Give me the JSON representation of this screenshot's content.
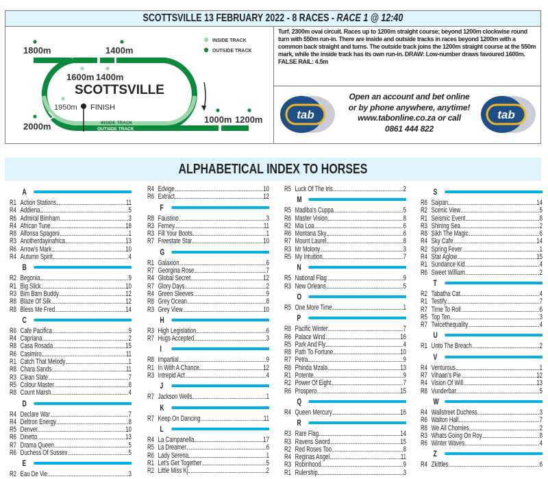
{
  "header": {
    "title_main": "SCOTTSVILLE 13 FEBRUARY 2022 - 8 RACES - ",
    "title_race": "RACE 1 @ 12:40"
  },
  "track_map": {
    "venue": "SCOTTSVILLE",
    "legend": {
      "inside": "INSIDE TRACK",
      "outside": "OUTSIDE TRACK"
    },
    "labels": {
      "m1800": "1800m",
      "m1400_outer": "1400m",
      "m1600_inner": "1600m",
      "m1400_inner": "1400m",
      "m1950": "1950m",
      "finish": "FINISH",
      "m2000": "2000m",
      "m1000": "1000m",
      "m1200": "1200m",
      "inside_track": "INSIDE TRACK",
      "outside_track": "OUTSIDE TRACK"
    },
    "colors": {
      "outside": "#0b8a3e",
      "inside": "#9bd8a9"
    }
  },
  "course_info": "Turf. 2300m oval circuit. Races up to 1200m straight course; beyond 1200m clockwise round turn with 550m run-in. There are inside and outside tracks in races beyond 1200m with a common back straight and turns. The outside track joins the 1200m straight course at the 550m mark, while the inside track has its own run-in. DRAW: Low-number draws favoured 1600m. FALSE RAIL: 4.5m",
  "promo": {
    "line1": "Open an account and bet online",
    "line2": "or by phone anywhere, anytime!",
    "line3": "www.tabonline.co.za or call",
    "line4": "0861 444 822",
    "logo_text": "tab"
  },
  "index_title": "ALPHABETICAL INDEX TO HORSES",
  "accent_color": "#00b0e6",
  "columns": [
    {
      "groups": [
        {
          "letter": "A",
          "entries": [
            {
              "r": "R1",
              "name": "Action Stations",
              "no": "11"
            },
            {
              "r": "R4",
              "name": "Addiena",
              "no": "5"
            },
            {
              "r": "R6",
              "name": "Admiral Bimham",
              "no": "3"
            },
            {
              "r": "R4",
              "name": "African Tune",
              "no": "18"
            },
            {
              "r": "R8",
              "name": "Alfonsa Spagoni",
              "no": "1"
            },
            {
              "r": "R3",
              "name": "Anotherdayinafrica",
              "no": "13"
            },
            {
              "r": "R6",
              "name": "Arrow's Mark",
              "no": "10"
            },
            {
              "r": "R4",
              "name": "Autumn Spirit",
              "no": "4"
            }
          ]
        },
        {
          "letter": "B",
          "entries": [
            {
              "r": "R2",
              "name": "Begonia",
              "no": "9"
            },
            {
              "r": "R1",
              "name": "Big Slick",
              "no": "10"
            },
            {
              "r": "R3",
              "name": "Bim Bam Buddy",
              "no": "12"
            },
            {
              "r": "R8",
              "name": "Blaze Of Silk",
              "no": "12"
            },
            {
              "r": "R8",
              "name": "Bless Me Fred",
              "no": "14"
            }
          ]
        },
        {
          "letter": "C",
          "entries": [
            {
              "r": "R6",
              "name": "Cafe Pacifica",
              "no": "9"
            },
            {
              "r": "R4",
              "name": "Capriana",
              "no": "2"
            },
            {
              "r": "R8",
              "name": "Casa Rosada",
              "no": "15"
            },
            {
              "r": "R6",
              "name": "Casimiro",
              "no": "11"
            },
            {
              "r": "R1",
              "name": "Catch That Melody",
              "no": "1"
            },
            {
              "r": "R8",
              "name": "Chara Sands",
              "no": "11"
            },
            {
              "r": "R3",
              "name": "Clean Slate",
              "no": "7"
            },
            {
              "r": "R5",
              "name": "Colour Master",
              "no": "8"
            },
            {
              "r": "R8",
              "name": "Count Marsh",
              "no": "4"
            }
          ]
        },
        {
          "letter": "D",
          "entries": [
            {
              "r": "R4",
              "name": "Declare War",
              "no": "7"
            },
            {
              "r": "R4",
              "name": "Deltron Energy",
              "no": "8"
            },
            {
              "r": "R5",
              "name": "Denver",
              "no": "10"
            },
            {
              "r": "R6",
              "name": "Dinetto",
              "no": "13"
            },
            {
              "r": "R7",
              "name": "Drama Queen",
              "no": "5"
            },
            {
              "r": "R6",
              "name": "Duchess Of Sussex",
              "no": "5"
            }
          ]
        },
        {
          "letter": "E",
          "entries": [
            {
              "r": "R2",
              "name": "Eau De Vie",
              "no": "3"
            }
          ]
        }
      ]
    },
    {
      "groups": [
        {
          "letter": null,
          "entries": [
            {
              "r": "R4",
              "name": "Edvige",
              "no": "10"
            },
            {
              "r": "R6",
              "name": "Extract",
              "no": "12"
            }
          ]
        },
        {
          "letter": "F",
          "entries": [
            {
              "r": "R8",
              "name": "Faustino",
              "no": "3"
            },
            {
              "r": "R3",
              "name": "Ferney",
              "no": "11"
            },
            {
              "r": "R3",
              "name": "Fill Your Boots",
              "no": "1"
            },
            {
              "r": "R7",
              "name": "Freestate Star",
              "no": "10"
            }
          ]
        },
        {
          "letter": "G",
          "entries": [
            {
              "r": "R1",
              "name": "Galaxion",
              "no": "6"
            },
            {
              "r": "R7",
              "name": "Georgina Rose",
              "no": "7"
            },
            {
              "r": "R4",
              "name": "Global Secret",
              "no": "12"
            },
            {
              "r": "R7",
              "name": "Glory Days",
              "no": "2"
            },
            {
              "r": "R4",
              "name": "Green Sleeves",
              "no": "9"
            },
            {
              "r": "R8",
              "name": "Grey Ocean",
              "no": "8"
            },
            {
              "r": "R3",
              "name": "Grey View",
              "no": "10"
            }
          ]
        },
        {
          "letter": "H",
          "entries": [
            {
              "r": "R3",
              "name": "High Legislation",
              "no": "6"
            },
            {
              "r": "R7",
              "name": "Hugs Accepted",
              "no": "3"
            }
          ]
        },
        {
          "letter": "I",
          "entries": [
            {
              "r": "R8",
              "name": "Impartial",
              "no": "9"
            },
            {
              "r": "R1",
              "name": "In With A Chance",
              "no": "12"
            },
            {
              "r": "R3",
              "name": "Intrepid Act",
              "no": "4"
            }
          ]
        },
        {
          "letter": "J",
          "entries": [
            {
              "r": "R7",
              "name": "Jackson Wells",
              "no": "1"
            }
          ]
        },
        {
          "letter": "K",
          "entries": [
            {
              "r": "R7",
              "name": "Keep On Dancing",
              "no": "11"
            }
          ]
        },
        {
          "letter": "L",
          "entries": [
            {
              "r": "R4",
              "name": "La Campanella",
              "no": "17"
            },
            {
              "r": "R5",
              "name": "La Dreamer",
              "no": "6"
            },
            {
              "r": "R6",
              "name": "Lady Serena",
              "no": "1"
            },
            {
              "r": "R1",
              "name": "Let's Get Together",
              "no": "5"
            },
            {
              "r": "R2",
              "name": "Little Miss Kj",
              "no": "2"
            }
          ]
        }
      ]
    },
    {
      "groups": [
        {
          "letter": null,
          "entries": [
            {
              "r": "R5",
              "name": "Luck Of The Iris",
              "no": "2"
            }
          ]
        },
        {
          "letter": "M",
          "entries": [
            {
              "r": "R5",
              "name": "Madiba's Cuppa",
              "no": "5"
            },
            {
              "r": "R6",
              "name": "Master Vision",
              "no": "8"
            },
            {
              "r": "R2",
              "name": "Mia Loa",
              "no": "6"
            },
            {
              "r": "R6",
              "name": "Montana Sky",
              "no": "6"
            },
            {
              "r": "R7",
              "name": "Mount Laurel",
              "no": "8"
            },
            {
              "r": "R3",
              "name": "Mr Molony",
              "no": "3"
            },
            {
              "r": "R5",
              "name": "My Intuition",
              "no": "7"
            }
          ]
        },
        {
          "letter": "N",
          "entries": [
            {
              "r": "R5",
              "name": "National Flag",
              "no": "9"
            },
            {
              "r": "R3",
              "name": "New Orleans",
              "no": "5"
            }
          ]
        },
        {
          "letter": "O",
          "entries": [
            {
              "r": "R5",
              "name": "One More Time",
              "no": "1"
            }
          ]
        },
        {
          "letter": "P",
          "entries": [
            {
              "r": "R8",
              "name": "Pacific Winter",
              "no": "7"
            },
            {
              "r": "R6",
              "name": "Palace Wind",
              "no": "16"
            },
            {
              "r": "R5",
              "name": "Park And Fly",
              "no": "4"
            },
            {
              "r": "R8",
              "name": "Path To Fortune",
              "no": "10"
            },
            {
              "r": "R7",
              "name": "Petra",
              "no": "9"
            },
            {
              "r": "R8",
              "name": "Phinda Mzala",
              "no": "13"
            },
            {
              "r": "R1",
              "name": "Potente",
              "no": "9"
            },
            {
              "r": "R2",
              "name": "Power Of Eight",
              "no": "7"
            },
            {
              "r": "R6",
              "name": "Prospero",
              "no": "15"
            }
          ]
        },
        {
          "letter": "Q",
          "entries": [
            {
              "r": "R4",
              "name": "Queen Mercury",
              "no": "16"
            }
          ]
        },
        {
          "letter": "R",
          "entries": [
            {
              "r": "R3",
              "name": "Rare Flag",
              "no": "14"
            },
            {
              "r": "R3",
              "name": "Ravens Sword",
              "no": "15"
            },
            {
              "r": "R2",
              "name": "Red Roses Too",
              "no": "8"
            },
            {
              "r": "R4",
              "name": "Reginas Angel",
              "no": "11"
            },
            {
              "r": "R3",
              "name": "Robinhood",
              "no": "9"
            },
            {
              "r": "R1",
              "name": "Rulership",
              "no": "3"
            }
          ]
        }
      ]
    },
    {
      "groups": [
        {
          "letter": "S",
          "entries": [
            {
              "r": "R6",
              "name": "Saipan",
              "no": "14"
            },
            {
              "r": "R2",
              "name": "Scenic View",
              "no": "5"
            },
            {
              "r": "R1",
              "name": "Seismic Event",
              "no": "8"
            },
            {
              "r": "R3",
              "name": "Shining Sea",
              "no": "2"
            },
            {
              "r": "R8",
              "name": "Sikh The Magic",
              "no": "6"
            },
            {
              "r": "R4",
              "name": "Sky Cafe",
              "no": "14"
            },
            {
              "r": "R2",
              "name": "Spring Fever",
              "no": "1"
            },
            {
              "r": "R4",
              "name": "Star Aglow",
              "no": "15"
            },
            {
              "r": "R1",
              "name": "Sundance Kid",
              "no": "4"
            },
            {
              "r": "R6",
              "name": "Sweet William",
              "no": "2"
            }
          ]
        },
        {
          "letter": "T",
          "entries": [
            {
              "r": "R2",
              "name": "Tabatha Cat",
              "no": "4"
            },
            {
              "r": "R1",
              "name": "Testify",
              "no": "7"
            },
            {
              "r": "R7",
              "name": "Time To Roll",
              "no": "6"
            },
            {
              "r": "R5",
              "name": "Top Ten",
              "no": "3"
            },
            {
              "r": "R7",
              "name": "Twicethequality",
              "no": "4"
            }
          ]
        },
        {
          "letter": "U",
          "entries": [
            {
              "r": "R1",
              "name": "Unto The Breach",
              "no": "2"
            }
          ]
        },
        {
          "letter": "V",
          "entries": [
            {
              "r": "R4",
              "name": "Venturous",
              "no": "1"
            },
            {
              "r": "R7",
              "name": "Vihaan's Pie",
              "no": "12"
            },
            {
              "r": "R4",
              "name": "Vision Of Will",
              "no": "13"
            },
            {
              "r": "R8",
              "name": "Vunderbar",
              "no": "5"
            }
          ]
        },
        {
          "letter": "W",
          "entries": [
            {
              "r": "R4",
              "name": "Wallstreet Duchess",
              "no": "3"
            },
            {
              "r": "R6",
              "name": "Walton Hall",
              "no": "7"
            },
            {
              "r": "R8",
              "name": "We All Chomies",
              "no": "2"
            },
            {
              "r": "R3",
              "name": "Whats Going On Roy",
              "no": "8"
            },
            {
              "r": "R6",
              "name": "Winter Waves",
              "no": "4"
            }
          ]
        },
        {
          "letter": "Z",
          "entries": [
            {
              "r": "R4",
              "name": "Zkittles",
              "no": "6"
            }
          ]
        }
      ]
    }
  ]
}
